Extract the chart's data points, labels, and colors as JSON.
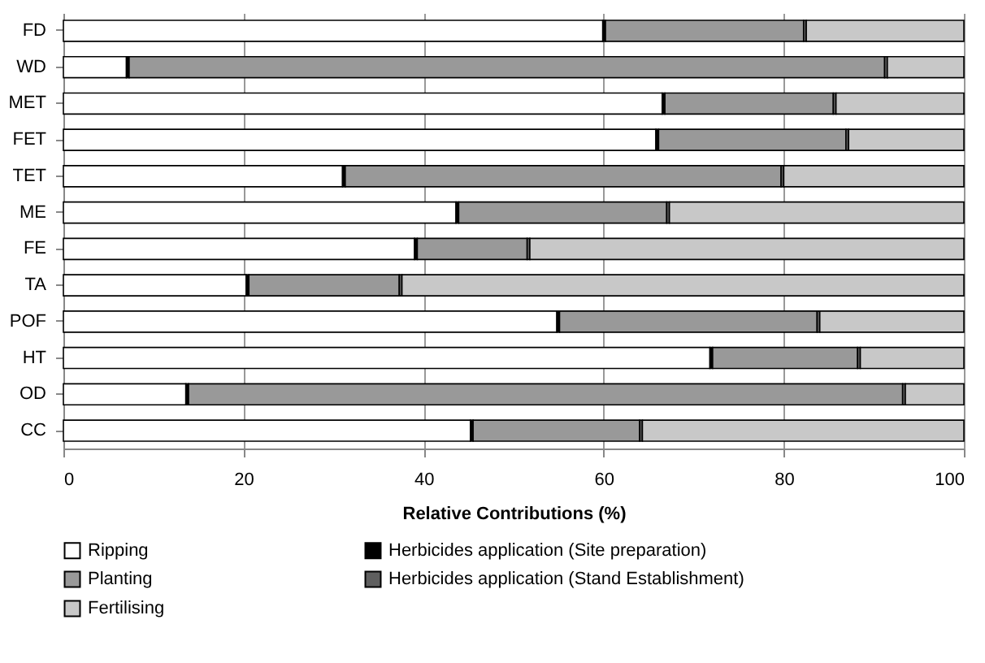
{
  "chart_data": {
    "type": "bar",
    "orientation": "horizontal",
    "stacked": true,
    "xlabel": "Relative Contributions (%)",
    "categories": [
      "FD",
      "WD",
      "MET",
      "FET",
      "TET",
      "ME",
      "FE",
      "TA",
      "POF",
      "HT",
      "OD",
      "CC"
    ],
    "series": [
      {
        "name": "Ripping",
        "color": "#ffffff",
        "values": [
          59.9,
          7,
          66.5,
          65.8,
          31,
          43.6,
          39,
          20.3,
          54.8,
          71.8,
          13.6,
          45.2
        ]
      },
      {
        "name": "Herbicides application (Site preparation)",
        "color": "#000000",
        "values": [
          0.3,
          0.3,
          0.3,
          0.3,
          0.3,
          0.3,
          0.3,
          0.3,
          0.3,
          0.3,
          0.3,
          0.3
        ]
      },
      {
        "name": "Planting",
        "color": "#999999",
        "values": [
          22,
          83.9,
          18.7,
          20.8,
          48.4,
          23.1,
          12.2,
          16.7,
          28.6,
          16.1,
          79.3,
          18.5
        ]
      },
      {
        "name": "Herbicides application (Stand Establishment)",
        "color": "#5f5f5f",
        "values": [
          0.3,
          0.3,
          0.3,
          0.3,
          0.3,
          0.3,
          0.3,
          0.3,
          0.3,
          0.3,
          0.3,
          0.3
        ]
      },
      {
        "name": "Fertilising",
        "color": "#c8c8c8",
        "values": [
          17.5,
          8.5,
          14.2,
          12.8,
          20,
          32.7,
          48.2,
          62.4,
          16,
          11.5,
          6.5,
          35.7
        ]
      }
    ],
    "xlim": [
      0,
      100
    ],
    "xticks": [
      0,
      20,
      40,
      60,
      80,
      100
    ],
    "grid": "x",
    "legend": "bottom"
  }
}
